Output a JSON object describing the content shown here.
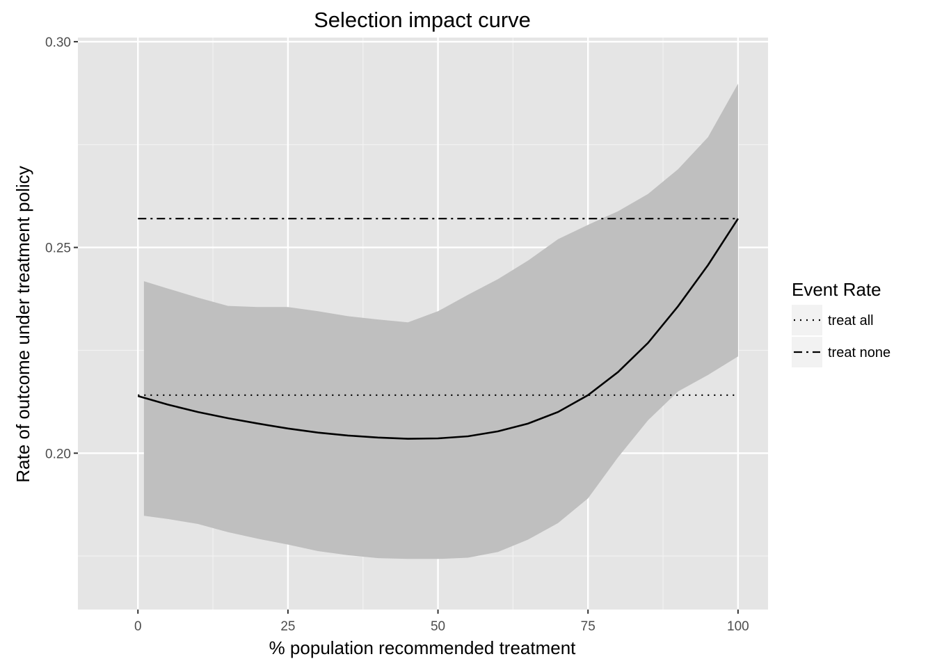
{
  "chart_data": {
    "type": "line",
    "title": "Selection impact curve",
    "xlabel": "% population recommended treatment",
    "ylabel": "Rate of outcome under treatment policy",
    "xlim": [
      -10,
      105
    ],
    "ylim": [
      0.162,
      0.301
    ],
    "x_ticks": [
      0,
      25,
      50,
      75,
      100
    ],
    "x_tick_labels": [
      "0",
      "25",
      "50",
      "75",
      "100"
    ],
    "y_ticks": [
      0.2,
      0.25,
      0.3
    ],
    "y_tick_labels": [
      "0.20",
      "0.25",
      "0.30"
    ],
    "grid": true,
    "legend": {
      "title": "Event Rate",
      "position": "right",
      "entries": [
        {
          "label": "treat all",
          "style": "dotted"
        },
        {
          "label": "treat none",
          "style": "dashdot"
        }
      ]
    },
    "series": [
      {
        "style": "solid",
        "x": [
          0,
          5,
          10,
          15,
          20,
          25,
          30,
          35,
          40,
          45,
          50,
          55,
          60,
          65,
          70,
          75,
          80,
          85,
          90,
          95,
          100
        ],
        "values": [
          0.2139,
          0.2118,
          0.21,
          0.2085,
          0.2072,
          0.206,
          0.205,
          0.2043,
          0.2038,
          0.2035,
          0.2036,
          0.2041,
          0.2053,
          0.2072,
          0.21,
          0.2141,
          0.2197,
          0.2268,
          0.2357,
          0.2457,
          0.257
        ]
      },
      {
        "name": "treat all",
        "style": "dotted",
        "x": [
          0,
          100
        ],
        "values": [
          0.2141,
          0.2141
        ]
      },
      {
        "name": "treat none",
        "style": "dashdot",
        "x": [
          0,
          100
        ],
        "values": [
          0.257,
          0.257
        ]
      }
    ],
    "ribbon": {
      "x": [
        1,
        5,
        10,
        15,
        20,
        25,
        30,
        35,
        40,
        45,
        50,
        55,
        60,
        65,
        70,
        75,
        80,
        85,
        90,
        95,
        100
      ],
      "upper": [
        0.2418,
        0.24,
        0.2378,
        0.2358,
        0.2355,
        0.2355,
        0.2345,
        0.2333,
        0.2325,
        0.2318,
        0.2345,
        0.2385,
        0.2423,
        0.2468,
        0.252,
        0.2555,
        0.2588,
        0.263,
        0.269,
        0.2768,
        0.2898
      ],
      "lower": [
        0.1848,
        0.184,
        0.1828,
        0.1808,
        0.1792,
        0.1778,
        0.1762,
        0.1752,
        0.1745,
        0.1743,
        0.1743,
        0.1746,
        0.176,
        0.179,
        0.183,
        0.189,
        0.199,
        0.208,
        0.215,
        0.219,
        0.2235
      ]
    }
  }
}
